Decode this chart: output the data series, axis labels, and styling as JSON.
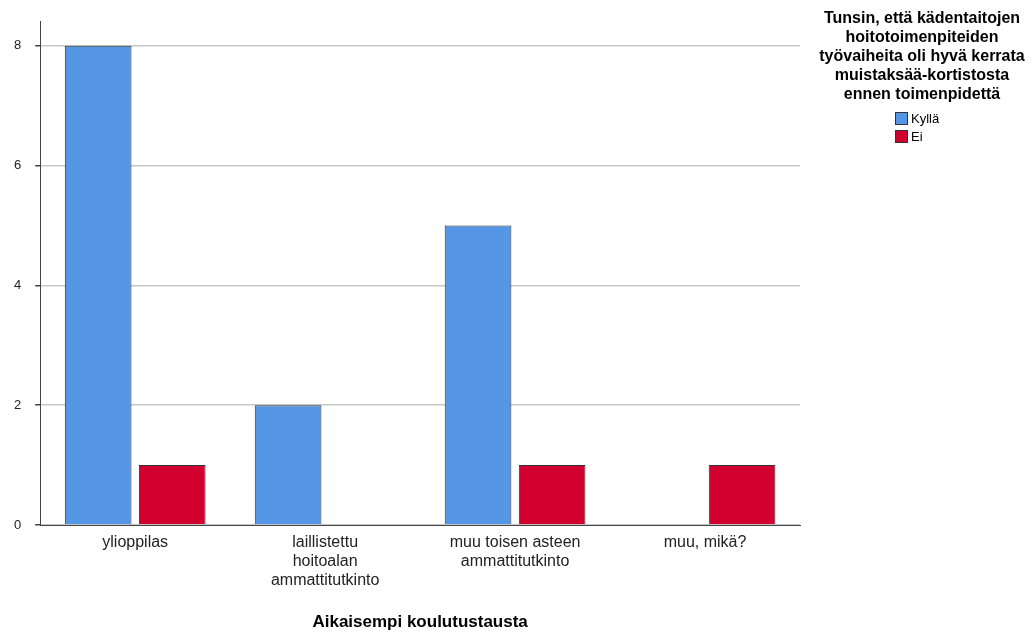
{
  "chart_data": {
    "type": "bar",
    "xlabel": "Aikaisempi koulutustausta",
    "legend_title": "Tunsin, että kädentaitojen hoitotoimenpiteiden työvaiheita oli hyvä kerrata muistaksää-kortistosta ennen toimenpidettä",
    "categories": [
      "ylioppilas",
      "laillistettu hoitoalan ammattitutkinto",
      "muu toisen asteen ammattitutkinto",
      "muu, mikä?"
    ],
    "series": [
      {
        "name": "Kyllä",
        "color": "#5596e6",
        "values": [
          8,
          2,
          5,
          null
        ]
      },
      {
        "name": "Ei",
        "color": "#d2002e",
        "values": [
          1,
          null,
          1,
          1
        ]
      }
    ],
    "ylim": [
      0,
      8.4
    ],
    "yticks": [
      0,
      2,
      4,
      6,
      8
    ],
    "grid": "y",
    "legend": "right"
  }
}
